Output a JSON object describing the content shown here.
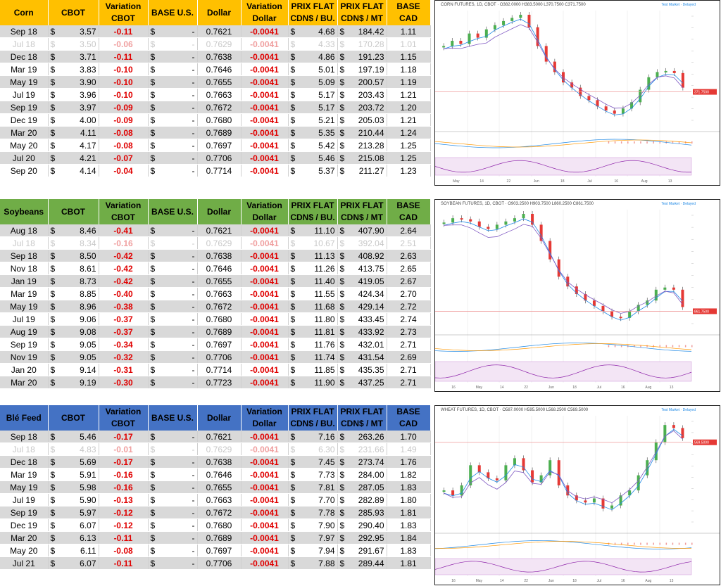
{
  "headers": [
    "CBOT",
    "Variation CBOT",
    "BASE U.S.",
    "Dollar",
    "Variation Dollar",
    "PRIX FLAT CDN$ / BU.",
    "PRIX FLAT CDN$ / MT",
    "BASE CAD"
  ],
  "colors": {
    "corn_header": "#ffc000",
    "soy_header": "#70ad47",
    "wheat_header": "#4472c4",
    "negative": "#e00000",
    "row_alt": "#d9d9d9"
  },
  "panels": [
    {
      "title": "Corn",
      "chart_title": "CORN FUTURES, 1D, CBOT · O382.0000 H383.5000 L370.7500 C371.7500",
      "chart_legend": "Test Market · Delayed",
      "rows": [
        {
          "month": "Sep 18",
          "cur": "$",
          "cbot": "3.57",
          "var": "-0.11",
          "base_cur": "$",
          "base": "-",
          "dollar": "0.7621",
          "vdollar": "-0.0041",
          "pf_cur": "$",
          "pfbu": "4.68",
          "pm_cur": "$",
          "pfmt": "184.42",
          "basecad": "1.11"
        },
        {
          "month": "Jul 18",
          "cur": "$",
          "cbot": "3.50",
          "var": "-0.06",
          "base_cur": "$",
          "base": "-",
          "dollar": "0.7629",
          "vdollar": "-0.0041",
          "pf_cur": "$",
          "pfbu": "4.33",
          "pm_cur": "$",
          "pfmt": "170.28",
          "basecad": "1.01"
        },
        {
          "month": "Dec 18",
          "cur": "$",
          "cbot": "3.71",
          "var": "-0.11",
          "base_cur": "$",
          "base": "-",
          "dollar": "0.7638",
          "vdollar": "-0.0041",
          "pf_cur": "$",
          "pfbu": "4.86",
          "pm_cur": "$",
          "pfmt": "191.23",
          "basecad": "1.15"
        },
        {
          "month": "Mar 19",
          "cur": "$",
          "cbot": "3.83",
          "var": "-0.10",
          "base_cur": "$",
          "base": "-",
          "dollar": "0.7646",
          "vdollar": "-0.0041",
          "pf_cur": "$",
          "pfbu": "5.01",
          "pm_cur": "$",
          "pfmt": "197.19",
          "basecad": "1.18"
        },
        {
          "month": "May 19",
          "cur": "$",
          "cbot": "3.90",
          "var": "-0.10",
          "base_cur": "$",
          "base": "-",
          "dollar": "0.7655",
          "vdollar": "-0.0041",
          "pf_cur": "$",
          "pfbu": "5.09",
          "pm_cur": "$",
          "pfmt": "200.57",
          "basecad": "1.19"
        },
        {
          "month": "Jul 19",
          "cur": "$",
          "cbot": "3.96",
          "var": "-0.10",
          "base_cur": "$",
          "base": "-",
          "dollar": "0.7663",
          "vdollar": "-0.0041",
          "pf_cur": "$",
          "pfbu": "5.17",
          "pm_cur": "$",
          "pfmt": "203.43",
          "basecad": "1.21"
        },
        {
          "month": "Sep 19",
          "cur": "$",
          "cbot": "3.97",
          "var": "-0.09",
          "base_cur": "$",
          "base": "-",
          "dollar": "0.7672",
          "vdollar": "-0.0041",
          "pf_cur": "$",
          "pfbu": "5.17",
          "pm_cur": "$",
          "pfmt": "203.72",
          "basecad": "1.20"
        },
        {
          "month": "Dec 19",
          "cur": "$",
          "cbot": "4.00",
          "var": "-0.09",
          "base_cur": "$",
          "base": "-",
          "dollar": "0.7680",
          "vdollar": "-0.0041",
          "pf_cur": "$",
          "pfbu": "5.21",
          "pm_cur": "$",
          "pfmt": "205.03",
          "basecad": "1.21"
        },
        {
          "month": "Mar 20",
          "cur": "$",
          "cbot": "4.11",
          "var": "-0.08",
          "base_cur": "$",
          "base": "-",
          "dollar": "0.7689",
          "vdollar": "-0.0041",
          "pf_cur": "$",
          "pfbu": "5.35",
          "pm_cur": "$",
          "pfmt": "210.44",
          "basecad": "1.24"
        },
        {
          "month": "May 20",
          "cur": "$",
          "cbot": "4.17",
          "var": "-0.08",
          "base_cur": "$",
          "base": "-",
          "dollar": "0.7697",
          "vdollar": "-0.0041",
          "pf_cur": "$",
          "pfbu": "5.42",
          "pm_cur": "$",
          "pfmt": "213.28",
          "basecad": "1.25"
        },
        {
          "month": "Jul 20",
          "cur": "$",
          "cbot": "4.21",
          "var": "-0.07",
          "base_cur": "$",
          "base": "-",
          "dollar": "0.7706",
          "vdollar": "-0.0041",
          "pf_cur": "$",
          "pfbu": "5.46",
          "pm_cur": "$",
          "pfmt": "215.08",
          "basecad": "1.25"
        },
        {
          "month": "Sep 20",
          "cur": "$",
          "cbot": "4.14",
          "var": "-0.04",
          "base_cur": "$",
          "base": "-",
          "dollar": "0.7714",
          "vdollar": "-0.0041",
          "pf_cur": "$",
          "pfbu": "5.37",
          "pm_cur": "$",
          "pfmt": "211.27",
          "basecad": "1.23"
        }
      ],
      "x_labels": [
        "May",
        "14",
        "22",
        "Jun",
        "18",
        "Jul",
        "16",
        "Aug",
        "13"
      ],
      "last_price_label": "371.7500"
    },
    {
      "title": "Soybeans",
      "chart_title": "SOYBEAN FUTURES, 1D, CBOT · O903.2500 H903.7500 L860.2500 C861.7500",
      "chart_legend": "Test Market · Delayed",
      "rows": [
        {
          "month": "Aug 18",
          "cur": "$",
          "cbot": "8.46",
          "var": "-0.41",
          "base_cur": "$",
          "base": "-",
          "dollar": "0.7621",
          "vdollar": "-0.0041",
          "pf_cur": "$",
          "pfbu": "11.10",
          "pm_cur": "$",
          "pfmt": "407.90",
          "basecad": "2.64"
        },
        {
          "month": "Jul 18",
          "cur": "$",
          "cbot": "8.34",
          "var": "-0.16",
          "base_cur": "$",
          "base": "-",
          "dollar": "0.7629",
          "vdollar": "-0.0041",
          "pf_cur": "$",
          "pfbu": "10.67",
          "pm_cur": "$",
          "pfmt": "392.04",
          "basecad": "2.51"
        },
        {
          "month": "Sep 18",
          "cur": "$",
          "cbot": "8.50",
          "var": "-0.42",
          "base_cur": "$",
          "base": "-",
          "dollar": "0.7638",
          "vdollar": "-0.0041",
          "pf_cur": "$",
          "pfbu": "11.13",
          "pm_cur": "$",
          "pfmt": "408.92",
          "basecad": "2.63"
        },
        {
          "month": "Nov 18",
          "cur": "$",
          "cbot": "8.61",
          "var": "-0.42",
          "base_cur": "$",
          "base": "-",
          "dollar": "0.7646",
          "vdollar": "-0.0041",
          "pf_cur": "$",
          "pfbu": "11.26",
          "pm_cur": "$",
          "pfmt": "413.75",
          "basecad": "2.65"
        },
        {
          "month": "Jan 19",
          "cur": "$",
          "cbot": "8.73",
          "var": "-0.42",
          "base_cur": "$",
          "base": "-",
          "dollar": "0.7655",
          "vdollar": "-0.0041",
          "pf_cur": "$",
          "pfbu": "11.40",
          "pm_cur": "$",
          "pfmt": "419.05",
          "basecad": "2.67"
        },
        {
          "month": "Mar 19",
          "cur": "$",
          "cbot": "8.85",
          "var": "-0.40",
          "base_cur": "$",
          "base": "-",
          "dollar": "0.7663",
          "vdollar": "-0.0041",
          "pf_cur": "$",
          "pfbu": "11.55",
          "pm_cur": "$",
          "pfmt": "424.34",
          "basecad": "2.70"
        },
        {
          "month": "May 19",
          "cur": "$",
          "cbot": "8.96",
          "var": "-0.38",
          "base_cur": "$",
          "base": "-",
          "dollar": "0.7672",
          "vdollar": "-0.0041",
          "pf_cur": "$",
          "pfbu": "11.68",
          "pm_cur": "$",
          "pfmt": "429.14",
          "basecad": "2.72"
        },
        {
          "month": "Jul 19",
          "cur": "$",
          "cbot": "9.06",
          "var": "-0.37",
          "base_cur": "$",
          "base": "-",
          "dollar": "0.7680",
          "vdollar": "-0.0041",
          "pf_cur": "$",
          "pfbu": "11.80",
          "pm_cur": "$",
          "pfmt": "433.45",
          "basecad": "2.74"
        },
        {
          "month": "Aug 19",
          "cur": "$",
          "cbot": "9.08",
          "var": "-0.37",
          "base_cur": "$",
          "base": "-",
          "dollar": "0.7689",
          "vdollar": "-0.0041",
          "pf_cur": "$",
          "pfbu": "11.81",
          "pm_cur": "$",
          "pfmt": "433.92",
          "basecad": "2.73"
        },
        {
          "month": "Sep 19",
          "cur": "$",
          "cbot": "9.05",
          "var": "-0.34",
          "base_cur": "$",
          "base": "-",
          "dollar": "0.7697",
          "vdollar": "-0.0041",
          "pf_cur": "$",
          "pfbu": "11.76",
          "pm_cur": "$",
          "pfmt": "432.01",
          "basecad": "2.71"
        },
        {
          "month": "Nov 19",
          "cur": "$",
          "cbot": "9.05",
          "var": "-0.32",
          "base_cur": "$",
          "base": "-",
          "dollar": "0.7706",
          "vdollar": "-0.0041",
          "pf_cur": "$",
          "pfbu": "11.74",
          "pm_cur": "$",
          "pfmt": "431.54",
          "basecad": "2.69"
        },
        {
          "month": "Jan 20",
          "cur": "$",
          "cbot": "9.14",
          "var": "-0.31",
          "base_cur": "$",
          "base": "-",
          "dollar": "0.7714",
          "vdollar": "-0.0041",
          "pf_cur": "$",
          "pfbu": "11.85",
          "pm_cur": "$",
          "pfmt": "435.35",
          "basecad": "2.71"
        },
        {
          "month": "Mar 20",
          "cur": "$",
          "cbot": "9.19",
          "var": "-0.30",
          "base_cur": "$",
          "base": "-",
          "dollar": "0.7723",
          "vdollar": "-0.0041",
          "pf_cur": "$",
          "pfbu": "11.90",
          "pm_cur": "$",
          "pfmt": "437.25",
          "basecad": "2.71"
        }
      ],
      "x_labels": [
        "16",
        "May",
        "14",
        "22",
        "Jun",
        "18",
        "Jul",
        "16",
        "Aug",
        "13"
      ],
      "last_price_label": "861.7500"
    },
    {
      "title": "Blé Feed",
      "chart_title": "WHEAT FUTURES, 1D, CBOT · O587.0000 H595.5000 L568.2500 C569.5000",
      "chart_legend": "Test Market · Delayed",
      "rows": [
        {
          "month": "Sep 18",
          "cur": "$",
          "cbot": "5.46",
          "var": "-0.17",
          "base_cur": "$",
          "base": "-",
          "dollar": "0.7621",
          "vdollar": "-0.0041",
          "pf_cur": "$",
          "pfbu": "7.16",
          "pm_cur": "$",
          "pfmt": "263.26",
          "basecad": "1.70"
        },
        {
          "month": "Jul 18",
          "cur": "$",
          "cbot": "4.83",
          "var": "-0.01",
          "base_cur": "$",
          "base": "-",
          "dollar": "0.7629",
          "vdollar": "-0.0041",
          "pf_cur": "$",
          "pfbu": "6.30",
          "pm_cur": "$",
          "pfmt": "231.66",
          "basecad": "1.49"
        },
        {
          "month": "Dec 18",
          "cur": "$",
          "cbot": "5.69",
          "var": "-0.17",
          "base_cur": "$",
          "base": "-",
          "dollar": "0.7638",
          "vdollar": "-0.0041",
          "pf_cur": "$",
          "pfbu": "7.45",
          "pm_cur": "$",
          "pfmt": "273.74",
          "basecad": "1.76"
        },
        {
          "month": "Mar 19",
          "cur": "$",
          "cbot": "5.91",
          "var": "-0.16",
          "base_cur": "$",
          "base": "-",
          "dollar": "0.7646",
          "vdollar": "-0.0041",
          "pf_cur": "$",
          "pfbu": "7.73",
          "pm_cur": "$",
          "pfmt": "284.00",
          "basecad": "1.82"
        },
        {
          "month": "May 19",
          "cur": "$",
          "cbot": "5.98",
          "var": "-0.16",
          "base_cur": "$",
          "base": "-",
          "dollar": "0.7655",
          "vdollar": "-0.0041",
          "pf_cur": "$",
          "pfbu": "7.81",
          "pm_cur": "$",
          "pfmt": "287.05",
          "basecad": "1.83"
        },
        {
          "month": "Jul 19",
          "cur": "$",
          "cbot": "5.90",
          "var": "-0.13",
          "base_cur": "$",
          "base": "-",
          "dollar": "0.7663",
          "vdollar": "-0.0041",
          "pf_cur": "$",
          "pfbu": "7.70",
          "pm_cur": "$",
          "pfmt": "282.89",
          "basecad": "1.80"
        },
        {
          "month": "Sep 19",
          "cur": "$",
          "cbot": "5.97",
          "var": "-0.12",
          "base_cur": "$",
          "base": "-",
          "dollar": "0.7672",
          "vdollar": "-0.0041",
          "pf_cur": "$",
          "pfbu": "7.78",
          "pm_cur": "$",
          "pfmt": "285.93",
          "basecad": "1.81"
        },
        {
          "month": "Dec 19",
          "cur": "$",
          "cbot": "6.07",
          "var": "-0.12",
          "base_cur": "$",
          "base": "-",
          "dollar": "0.7680",
          "vdollar": "-0.0041",
          "pf_cur": "$",
          "pfbu": "7.90",
          "pm_cur": "$",
          "pfmt": "290.40",
          "basecad": "1.83"
        },
        {
          "month": "Mar 20",
          "cur": "$",
          "cbot": "6.13",
          "var": "-0.11",
          "base_cur": "$",
          "base": "-",
          "dollar": "0.7689",
          "vdollar": "-0.0041",
          "pf_cur": "$",
          "pfbu": "7.97",
          "pm_cur": "$",
          "pfmt": "292.95",
          "basecad": "1.84"
        },
        {
          "month": "May 20",
          "cur": "$",
          "cbot": "6.11",
          "var": "-0.08",
          "base_cur": "$",
          "base": "-",
          "dollar": "0.7697",
          "vdollar": "-0.0041",
          "pf_cur": "$",
          "pfbu": "7.94",
          "pm_cur": "$",
          "pfmt": "291.67",
          "basecad": "1.83"
        },
        {
          "month": "Jul 21",
          "cur": "$",
          "cbot": "6.07",
          "var": "-0.11",
          "base_cur": "$",
          "base": "-",
          "dollar": "0.7706",
          "vdollar": "-0.0041",
          "pf_cur": "$",
          "pfbu": "7.88",
          "pm_cur": "$",
          "pfmt": "289.44",
          "basecad": "1.81"
        }
      ],
      "x_labels": [
        "16",
        "May",
        "14",
        "22",
        "Jun",
        "18",
        "Jul",
        "16",
        "Aug",
        "13"
      ],
      "last_price_label": "569.5000"
    }
  ]
}
